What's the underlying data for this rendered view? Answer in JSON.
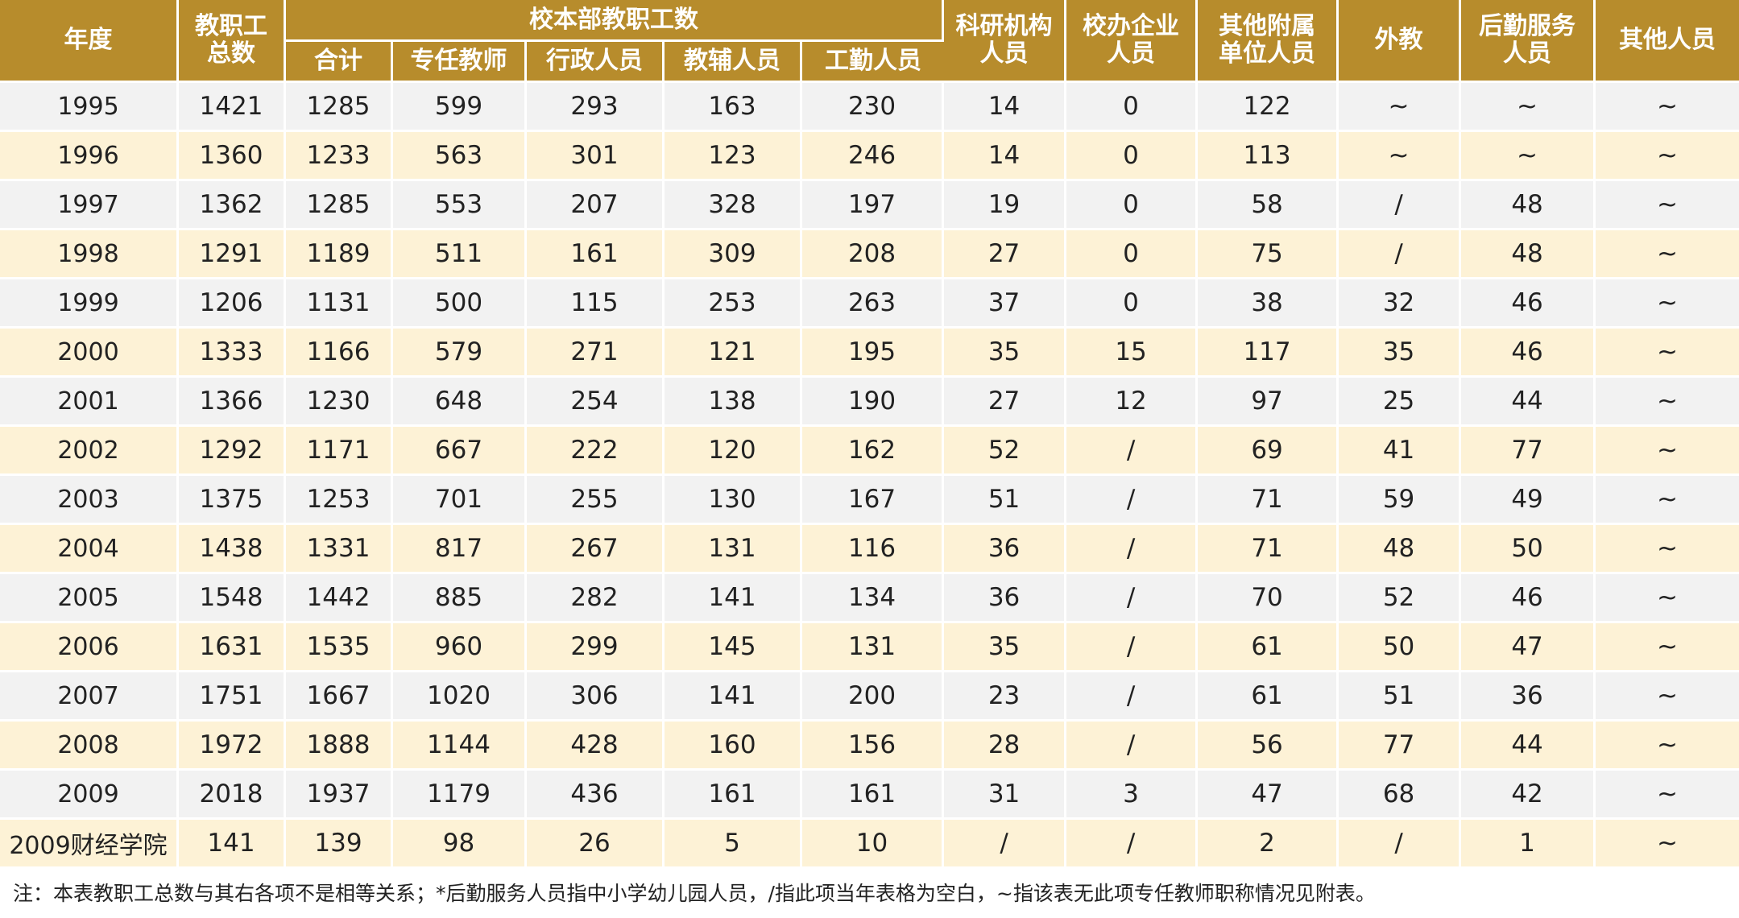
{
  "table": {
    "headers": {
      "year": "年度",
      "total": [
        "教职工",
        "总数"
      ],
      "group": "校本部教职工数",
      "sub": [
        "合计",
        "专任教师",
        "行政人员",
        "教辅人员",
        "工勤人员"
      ],
      "research": [
        "科研机构",
        "人员"
      ],
      "enterprise": [
        "校办企业",
        "人员"
      ],
      "affiliated": [
        "其他附属",
        "单位人员"
      ],
      "foreign": "外教",
      "logistics": [
        "后勤服务",
        "人员"
      ],
      "others": "其他人员"
    },
    "rows": [
      [
        "1995",
        "1421",
        "1285",
        "599",
        "293",
        "163",
        "230",
        "14",
        "0",
        "122",
        "~",
        "~",
        "~"
      ],
      [
        "1996",
        "1360",
        "1233",
        "563",
        "301",
        "123",
        "246",
        "14",
        "0",
        "113",
        "~",
        "~",
        "~"
      ],
      [
        "1997",
        "1362",
        "1285",
        "553",
        "207",
        "328",
        "197",
        "19",
        "0",
        "58",
        "/",
        "48",
        "~"
      ],
      [
        "1998",
        "1291",
        "1189",
        "511",
        "161",
        "309",
        "208",
        "27",
        "0",
        "75",
        "/",
        "48",
        "~"
      ],
      [
        "1999",
        "1206",
        "1131",
        "500",
        "115",
        "253",
        "263",
        "37",
        "0",
        "38",
        "32",
        "46",
        "~"
      ],
      [
        "2000",
        "1333",
        "1166",
        "579",
        "271",
        "121",
        "195",
        "35",
        "15",
        "117",
        "35",
        "46",
        "~"
      ],
      [
        "2001",
        "1366",
        "1230",
        "648",
        "254",
        "138",
        "190",
        "27",
        "12",
        "97",
        "25",
        "44",
        "~"
      ],
      [
        "2002",
        "1292",
        "1171",
        "667",
        "222",
        "120",
        "162",
        "52",
        "/",
        "69",
        "41",
        "77",
        "~"
      ],
      [
        "2003",
        "1375",
        "1253",
        "701",
        "255",
        "130",
        "167",
        "51",
        "/",
        "71",
        "59",
        "49",
        "~"
      ],
      [
        "2004",
        "1438",
        "1331",
        "817",
        "267",
        "131",
        "116",
        "36",
        "/",
        "71",
        "48",
        "50",
        "~"
      ],
      [
        "2005",
        "1548",
        "1442",
        "885",
        "282",
        "141",
        "134",
        "36",
        "/",
        "70",
        "52",
        "46",
        "~"
      ],
      [
        "2006",
        "1631",
        "1535",
        "960",
        "299",
        "145",
        "131",
        "35",
        "/",
        "61",
        "50",
        "47",
        "~"
      ],
      [
        "2007",
        "1751",
        "1667",
        "1020",
        "306",
        "141",
        "200",
        "23",
        "/",
        "61",
        "51",
        "36",
        "~"
      ],
      [
        "2008",
        "1972",
        "1888",
        "1144",
        "428",
        "160",
        "156",
        "28",
        "/",
        "56",
        "77",
        "44",
        "~"
      ],
      [
        "2009",
        "2018",
        "1937",
        "1179",
        "436",
        "161",
        "161",
        "31",
        "3",
        "47",
        "68",
        "42",
        "~"
      ],
      [
        "2009财经学院",
        "141",
        "139",
        "98",
        "26",
        "5",
        "10",
        "/",
        "/",
        "2",
        "/",
        "1",
        "~"
      ]
    ]
  },
  "note": "注：本表教职工总数与其右各项不是相等关系；*后勤服务人员指中小学幼儿园人员，/指此项当年表格为空白，~指该表无此项专任教师职称情况见附表。",
  "colors": {
    "header_bg": "#b78c2c",
    "row_odd": "#f2f2f2",
    "row_even": "#fdf2d6"
  }
}
